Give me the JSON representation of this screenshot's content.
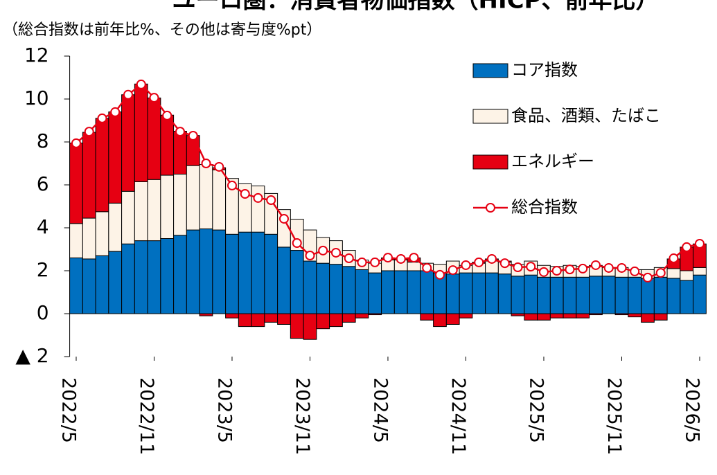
{
  "chart_data": {
    "type": "bar",
    "title": "ユーロ圏：消費者物価指数（HICP、前年比）",
    "subtitle": "（総合指数は前年比%、その他は寄与度%pt）",
    "categories": [
      "2022/5",
      null,
      null,
      null,
      null,
      null,
      "2022/11",
      null,
      null,
      null,
      null,
      null,
      "2023/5",
      null,
      null,
      null,
      null,
      null,
      "2023/11",
      null,
      null,
      null,
      null,
      null,
      "2024/5",
      null,
      null,
      null,
      null,
      null,
      "2024/11",
      null,
      null,
      null,
      null,
      null,
      "2025/5",
      null,
      null,
      null,
      null,
      null,
      "2025/11",
      null,
      null,
      null,
      null,
      null,
      "2026/5"
    ],
    "series": [
      {
        "name": "コア指数",
        "color": "#0070c0",
        "kind": "bar",
        "values": [
          2.6,
          2.55,
          2.7,
          2.9,
          3.25,
          3.4,
          3.4,
          3.5,
          3.65,
          3.9,
          3.95,
          3.9,
          3.7,
          3.8,
          3.8,
          3.7,
          3.1,
          2.95,
          2.45,
          2.35,
          2.3,
          2.2,
          2.05,
          1.9,
          2.0,
          2.0,
          2.0,
          2.0,
          1.9,
          1.85,
          1.9,
          1.9,
          1.9,
          1.85,
          1.75,
          1.8,
          1.7,
          1.7,
          1.7,
          1.7,
          1.75,
          1.75,
          1.7,
          1.7,
          1.65,
          1.7,
          1.65,
          1.55,
          1.8
        ]
      },
      {
        "name": "食品、酒類、たばこ",
        "color": "#fdf3e7",
        "kind": "bar",
        "values": [
          1.6,
          1.9,
          2.05,
          2.25,
          2.45,
          2.75,
          2.85,
          2.95,
          2.85,
          3.0,
          3.0,
          2.8,
          2.6,
          2.25,
          2.15,
          1.9,
          1.75,
          1.45,
          1.45,
          1.2,
          1.1,
          0.75,
          0.45,
          0.45,
          0.5,
          0.5,
          0.4,
          0.35,
          0.4,
          0.6,
          0.35,
          0.45,
          0.55,
          0.55,
          0.55,
          0.65,
          0.55,
          0.5,
          0.55,
          0.5,
          0.5,
          0.4,
          0.45,
          0.35,
          0.4,
          0.45,
          0.45,
          0.45,
          0.35
        ]
      },
      {
        "name": "エネルギー",
        "color": "#e60012",
        "kind": "bar",
        "values": [
          3.75,
          4.0,
          4.35,
          4.25,
          4.5,
          4.55,
          3.8,
          2.8,
          2.0,
          1.4,
          -0.1,
          0.1,
          -0.2,
          -0.6,
          -0.6,
          -0.4,
          -0.5,
          -1.15,
          -1.2,
          -0.7,
          -0.6,
          -0.4,
          -0.2,
          -0.05,
          0.1,
          0.05,
          0.2,
          -0.3,
          -0.6,
          -0.5,
          -0.2,
          0.05,
          0.1,
          0.05,
          -0.1,
          -0.3,
          -0.3,
          -0.2,
          -0.2,
          -0.2,
          -0.05,
          0.0,
          -0.05,
          -0.15,
          -0.4,
          -0.3,
          0.45,
          1.1,
          1.1
        ]
      },
      {
        "name": "総合指数",
        "color": "#e60012",
        "kind": "line",
        "values": [
          7.94,
          8.48,
          9.1,
          9.39,
          10.2,
          10.68,
          10.06,
          9.23,
          8.48,
          8.29,
          7.0,
          6.84,
          5.97,
          5.58,
          5.39,
          5.29,
          4.42,
          3.29,
          2.71,
          2.94,
          2.84,
          2.58,
          2.39,
          2.39,
          2.61,
          2.55,
          2.61,
          2.13,
          1.81,
          2.03,
          2.26,
          2.39,
          2.55,
          2.35,
          2.16,
          2.19,
          1.94,
          2.0,
          2.06,
          2.1,
          2.26,
          2.13,
          2.13,
          1.97,
          1.68,
          1.9,
          2.58,
          3.1,
          3.26
        ]
      }
    ],
    "ylim": [
      -2,
      12
    ],
    "yticks": [
      {
        "value": -2,
        "label": "▲ 2"
      },
      0,
      2,
      4,
      6,
      8,
      10,
      12
    ],
    "stacked": true,
    "legend": "top-right"
  }
}
